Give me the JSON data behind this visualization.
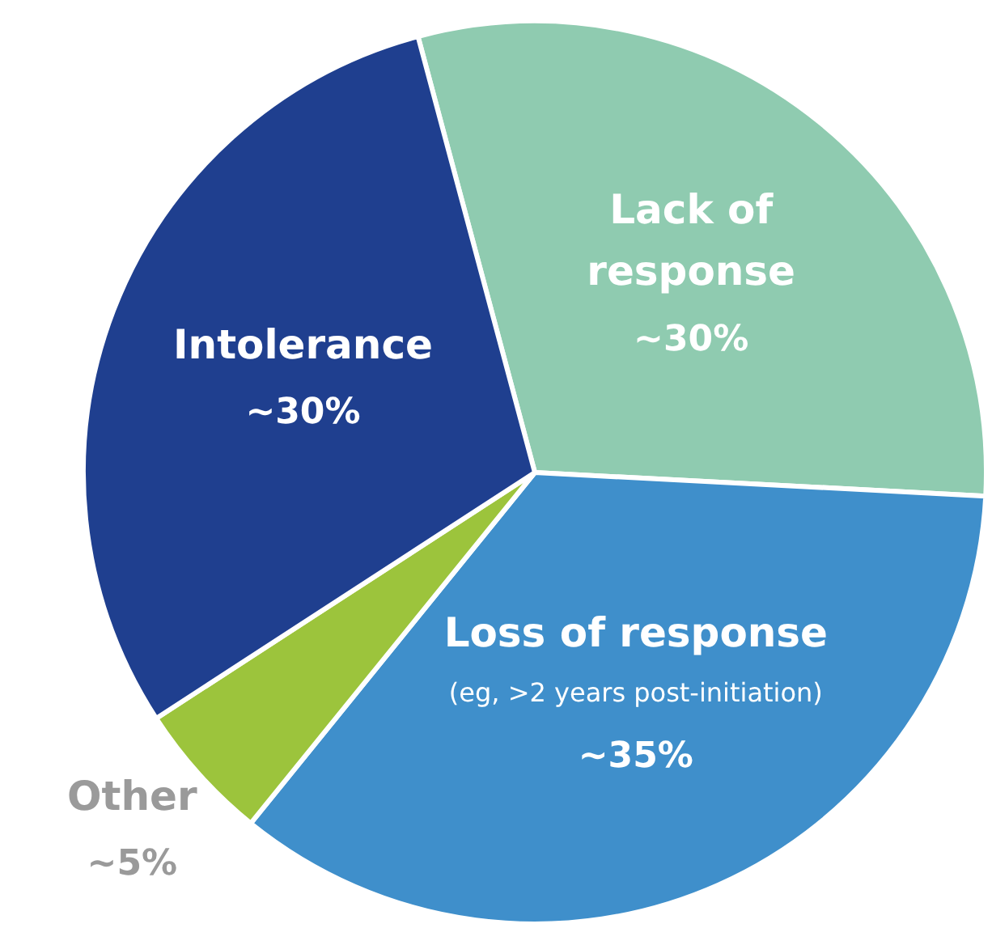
{
  "chart_data": {
    "type": "pie",
    "categories": [
      "Lack of\nresponse",
      "Loss of response",
      "Other",
      "Intolerance"
    ],
    "values": [
      30,
      35,
      5,
      30
    ],
    "value_labels": [
      "~30%",
      "~35%",
      "~5%",
      "~30%"
    ],
    "colors": [
      "#8fcbb0",
      "#3f8fcb",
      "#9cc43c",
      "#1f3f8f"
    ],
    "annotations": [
      {
        "text": "(eg, >2 years post-initiation)",
        "x": "Loss of response"
      }
    ],
    "legend": false
  }
}
